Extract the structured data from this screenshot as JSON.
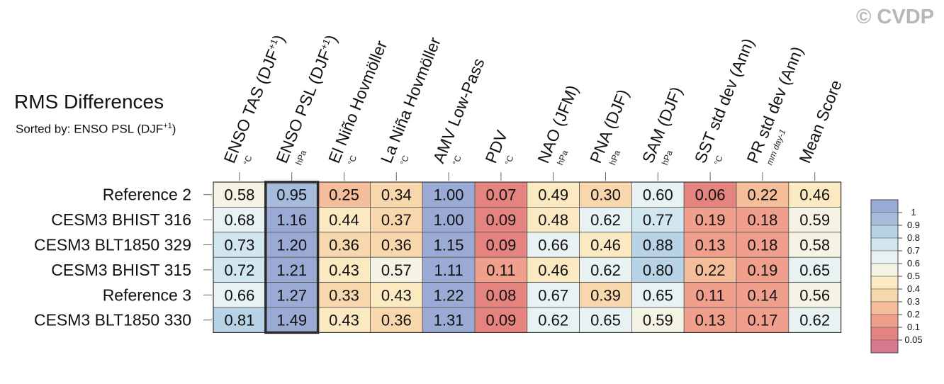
{
  "title": "RMS Differences",
  "subtitle": "Sorted by: ENSO PSL (DJF+1)",
  "watermark": "© CVDP",
  "chart_data": {
    "type": "heatmap",
    "columns": [
      {
        "label": "ENSO TAS (DJF+1)",
        "unit": "°C"
      },
      {
        "label": "ENSO PSL (DJF+1)",
        "unit": "hPa"
      },
      {
        "label": "El Niño Hovmöller",
        "unit": "°C"
      },
      {
        "label": "La Niña Hovmöller",
        "unit": "°C"
      },
      {
        "label": "AMV Low-Pass",
        "unit": "°C"
      },
      {
        "label": "PDV",
        "unit": "°C"
      },
      {
        "label": "NAO (JFM)",
        "unit": "hPa"
      },
      {
        "label": "PNA (DJF)",
        "unit": "hPa"
      },
      {
        "label": "SAM (DJF)",
        "unit": "hPa"
      },
      {
        "label": "SST std dev (Ann)",
        "unit": "°C"
      },
      {
        "label": "PR std dev (Ann)",
        "unit": "mm day-1"
      },
      {
        "label": "Mean Score",
        "unit": ""
      }
    ],
    "rows": [
      "Reference 2",
      "CESM3 BHIST 316",
      "CESM3 BLT1850 329",
      "CESM3 BHIST 315",
      "Reference 3",
      "CESM3 BLT1850 330"
    ],
    "values": [
      [
        0.58,
        0.95,
        0.25,
        0.34,
        1.0,
        0.07,
        0.49,
        0.3,
        0.6,
        0.06,
        0.22,
        0.46
      ],
      [
        0.68,
        1.16,
        0.44,
        0.37,
        1.0,
        0.09,
        0.48,
        0.62,
        0.77,
        0.19,
        0.18,
        0.59
      ],
      [
        0.73,
        1.2,
        0.36,
        0.36,
        1.15,
        0.09,
        0.66,
        0.46,
        0.88,
        0.13,
        0.18,
        0.58
      ],
      [
        0.72,
        1.21,
        0.43,
        0.57,
        1.11,
        0.11,
        0.46,
        0.62,
        0.8,
        0.22,
        0.19,
        0.65
      ],
      [
        0.66,
        1.27,
        0.33,
        0.43,
        1.22,
        0.08,
        0.67,
        0.39,
        0.65,
        0.11,
        0.14,
        0.56
      ],
      [
        0.81,
        1.49,
        0.43,
        0.36,
        1.31,
        0.09,
        0.62,
        0.65,
        0.59,
        0.13,
        0.17,
        0.62
      ]
    ],
    "display": [
      [
        "0.58",
        "0.95",
        "0.25",
        "0.34",
        "1.00",
        "0.07",
        "0.49",
        "0.30",
        "0.60",
        "0.06",
        "0.22",
        "0.46"
      ],
      [
        "0.68",
        "1.16",
        "0.44",
        "0.37",
        "1.00",
        "0.09",
        "0.48",
        "0.62",
        "0.77",
        "0.19",
        "0.18",
        "0.59"
      ],
      [
        "0.73",
        "1.20",
        "0.36",
        "0.36",
        "1.15",
        "0.09",
        "0.66",
        "0.46",
        "0.88",
        "0.13",
        "0.18",
        "0.58"
      ],
      [
        "0.72",
        "1.21",
        "0.43",
        "0.57",
        "1.11",
        "0.11",
        "0.46",
        "0.62",
        "0.80",
        "0.22",
        "0.19",
        "0.65"
      ],
      [
        "0.66",
        "1.27",
        "0.33",
        "0.43",
        "1.22",
        "0.08",
        "0.67",
        "0.39",
        "0.65",
        "0.11",
        "0.14",
        "0.56"
      ],
      [
        "0.81",
        "1.49",
        "0.43",
        "0.36",
        "1.31",
        "0.09",
        "0.62",
        "0.65",
        "0.59",
        "0.13",
        "0.17",
        "0.62"
      ]
    ],
    "highlighted_column": 1,
    "colorbar": {
      "levels": [
        "1",
        "0.9",
        "0.8",
        "0.7",
        "0.6",
        "0.5",
        "0.4",
        "0.3",
        "0.2",
        "0.1",
        "0.05"
      ],
      "level_values": [
        1.0,
        0.9,
        0.8,
        0.7,
        0.6,
        0.5,
        0.4,
        0.3,
        0.2,
        0.1,
        0.05
      ],
      "colors": [
        "#9aaad4",
        "#a6bcdc",
        "#b9d3e6",
        "#d2e6ef",
        "#e8f2f2",
        "#f5f4e4",
        "#fbe9c2",
        "#f9d7ad",
        "#f6bd9a",
        "#ef9f8b",
        "#e5847f",
        "#d8798d"
      ]
    }
  }
}
